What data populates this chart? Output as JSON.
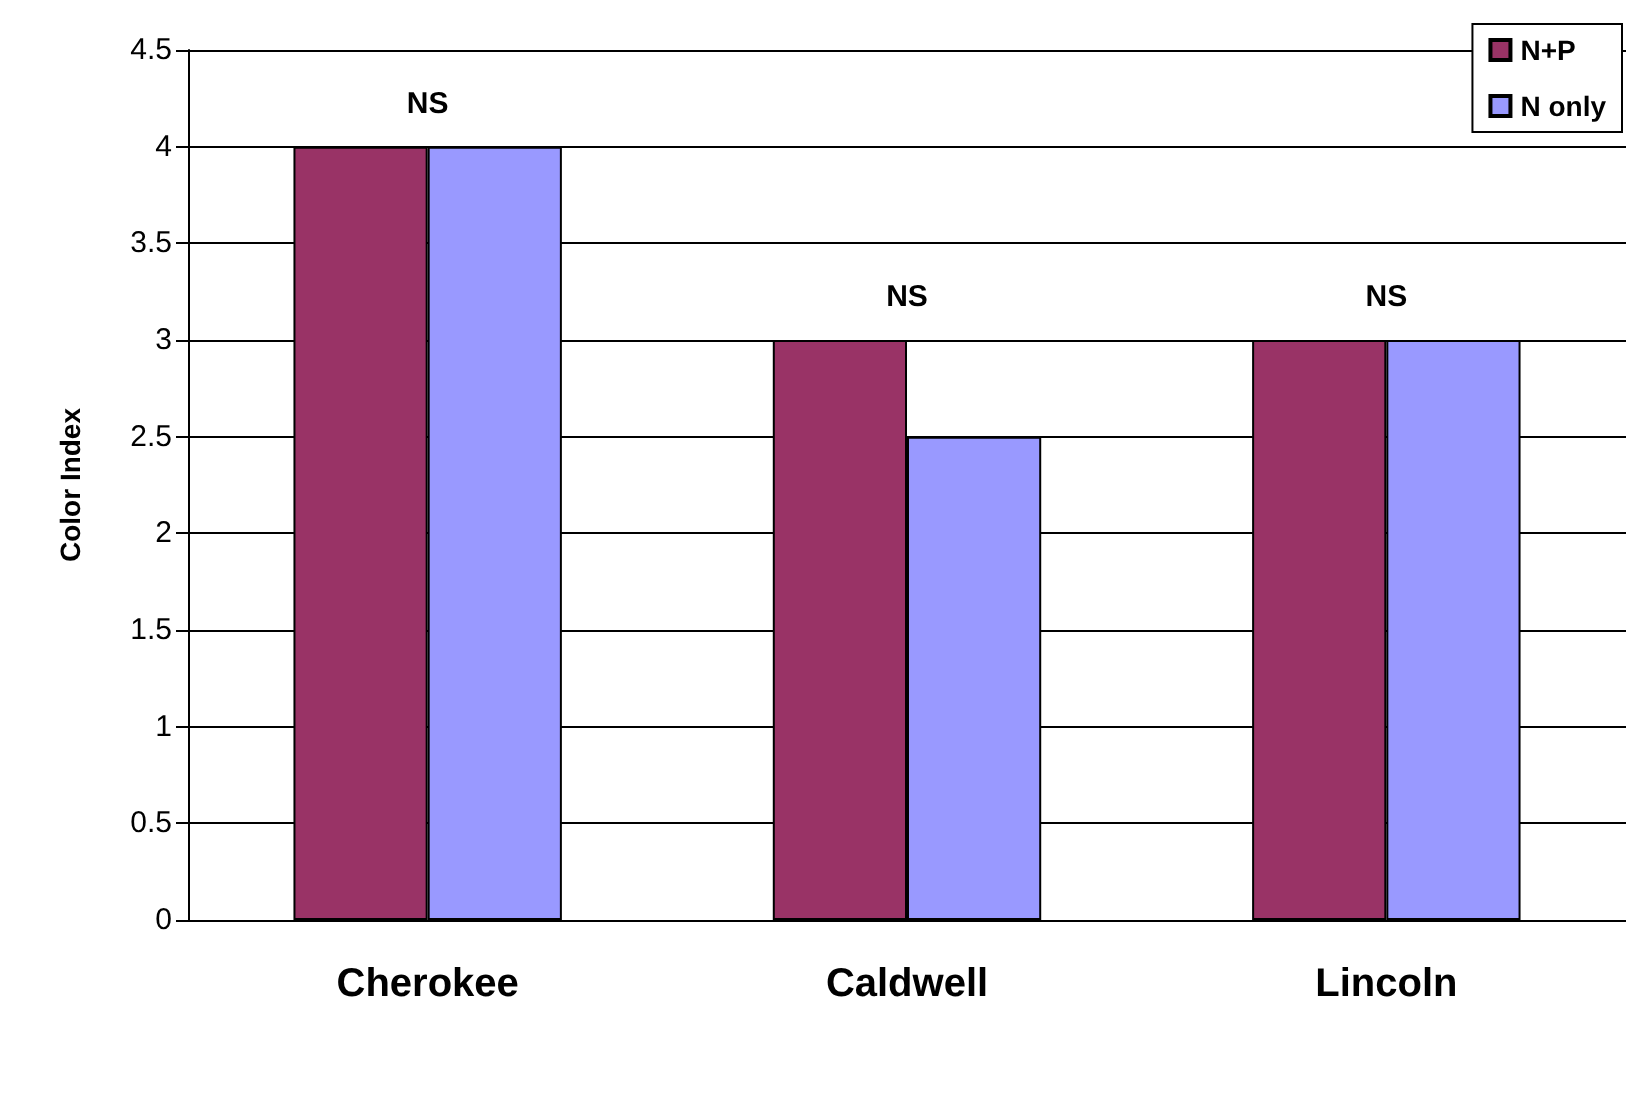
{
  "chart_data": {
    "type": "bar",
    "ylabel": "Color Index",
    "categories": [
      "Cherokee",
      "Caldwell",
      "Lincoln"
    ],
    "series": [
      {
        "name": "N+P",
        "color": "#993366",
        "values": [
          4,
          3,
          3
        ]
      },
      {
        "name": "N only",
        "color": "#9999ff",
        "values": [
          4,
          2.5,
          3
        ]
      }
    ],
    "ylim": [
      0,
      4.5
    ],
    "yticks": [
      0,
      0.5,
      1,
      1.5,
      2,
      2.5,
      3,
      3.5,
      4,
      4.5
    ],
    "grid": "y",
    "legend": "top right",
    "annotations": [
      "NS",
      "NS",
      "NS"
    ]
  }
}
